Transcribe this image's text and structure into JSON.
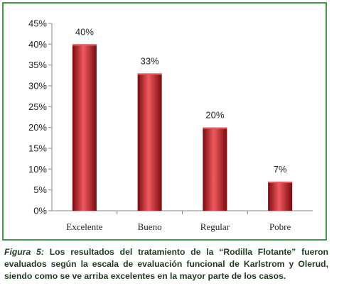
{
  "chart_data": {
    "type": "bar",
    "categories": [
      "Excelente",
      "Bueno",
      "Regular",
      "Pobre"
    ],
    "values": [
      40,
      33,
      20,
      7
    ],
    "data_labels": [
      "40%",
      "33%",
      "20%",
      "7%"
    ],
    "ylim": [
      0,
      45
    ],
    "yticks": [
      {
        "value": 0,
        "label": "0%"
      },
      {
        "value": 5,
        "label": "5%"
      },
      {
        "value": 10,
        "label": "10%"
      },
      {
        "value": 15,
        "label": "15%"
      },
      {
        "value": 20,
        "label": "20%"
      },
      {
        "value": 25,
        "label": "25%"
      },
      {
        "value": 30,
        "label": "30%"
      },
      {
        "value": 35,
        "label": "35%"
      },
      {
        "value": 40,
        "label": "40%"
      },
      {
        "value": 45,
        "label": "45%"
      }
    ],
    "grid": false,
    "colors": {
      "bar": "#c8161d",
      "bar_dark": "#7a0a0e",
      "bar_light": "#ef5a5e",
      "frame": "#3f9a4a"
    }
  },
  "caption": {
    "lead": "Figura 5:",
    "text": "Los resultados del tratamiento de la “Rodilla Flotante” fueron evaluados según la escala de evaluación funcional de Karlstrom y Olerud, siendo como se ve arriba excelentes en la mayor parte de los casos."
  }
}
